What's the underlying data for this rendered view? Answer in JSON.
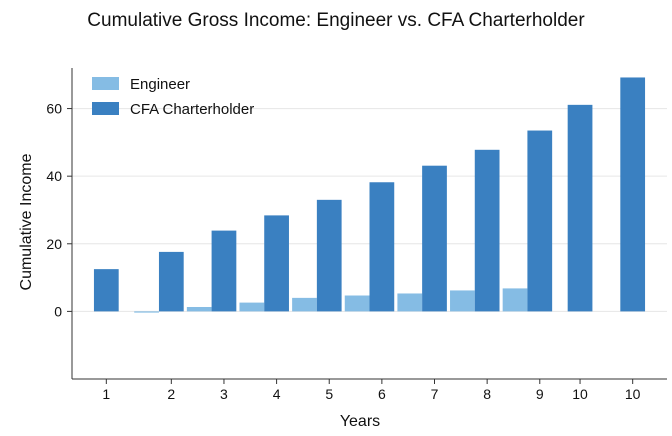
{
  "chart_data": {
    "type": "bar",
    "title": "Cumulative Gross Income: Engineer vs. CFA Charterholder",
    "xlabel": "Years",
    "ylabel": "Cumulative Income",
    "x_tick_labels": [
      "1",
      "2",
      "3",
      "4",
      "5",
      "6",
      "7",
      "8",
      "9",
      "10",
      "10"
    ],
    "y_ticks": [
      0,
      20,
      40,
      60
    ],
    "ylim": [
      -20,
      72
    ],
    "grid": "y",
    "legend_position": "top-left",
    "series": [
      {
        "name": "Engineer",
        "color": "#85bce4",
        "values": [
          null,
          0,
          1.3,
          2.6,
          4.0,
          4.7,
          5.3,
          6.2,
          6.8,
          null,
          null
        ]
      },
      {
        "name": "CFA Charterholder",
        "color": "#3a80c1",
        "values": [
          12.5,
          17.6,
          23.9,
          28.4,
          33.0,
          38.2,
          43.1,
          47.8,
          53.5,
          61.1,
          69.2
        ]
      }
    ]
  }
}
